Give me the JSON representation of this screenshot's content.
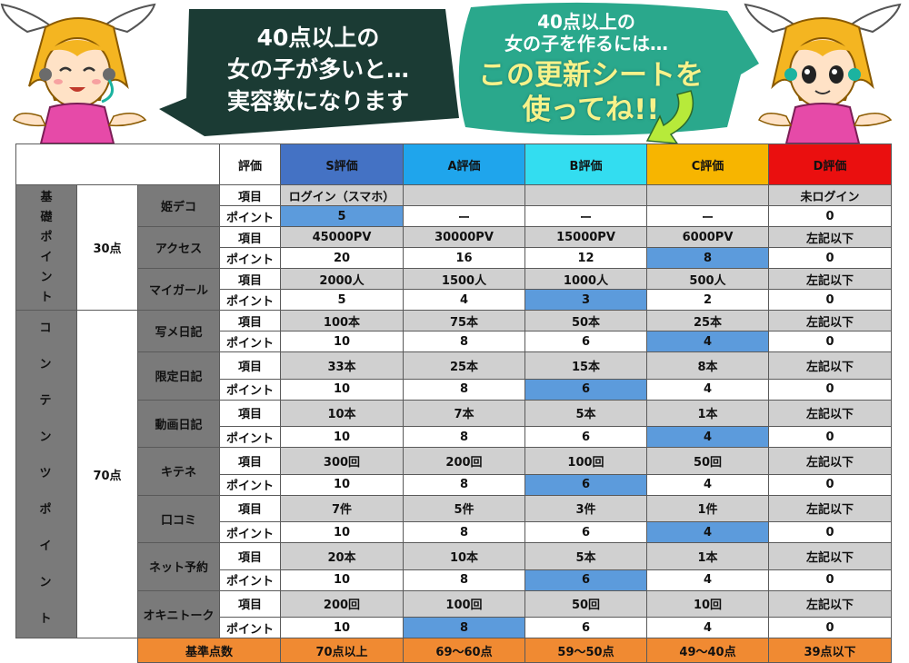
{
  "banner": {
    "left_bubble": [
      "40点以上の",
      "女の子が多いと…",
      "実容数になります"
    ],
    "right_bubble_small": [
      "40点以上の",
      "女の子を作るには…"
    ],
    "right_bubble_big": [
      "この更新シートを",
      "使ってね!!"
    ],
    "colors": {
      "left_bubble": "#1b3b34",
      "right_bubble": "#2aa88c",
      "right_text": "#f7f28a"
    }
  },
  "table": {
    "header": {
      "label": "評価",
      "grades": [
        "S評価",
        "A評価",
        "B評価",
        "C評価",
        "D評価"
      ]
    },
    "row_labels": {
      "item": "項目",
      "point": "ポイント"
    },
    "sections": [
      {
        "title": "基礎ポイント",
        "points": "30点",
        "categories": [
          {
            "name": "姫デコ",
            "items": [
              "ログイン（スマホ）",
              "",
              "",
              "",
              "未ログイン"
            ],
            "points": [
              "5",
              "ー",
              "ー",
              "ー",
              "0"
            ],
            "highlight": 0
          },
          {
            "name": "アクセス",
            "items": [
              "45000PV",
              "30000PV",
              "15000PV",
              "6000PV",
              "左記以下"
            ],
            "points": [
              "20",
              "16",
              "12",
              "8",
              "0"
            ],
            "highlight": 3
          },
          {
            "name": "マイガール",
            "items": [
              "2000人",
              "1500人",
              "1000人",
              "500人",
              "左記以下"
            ],
            "points": [
              "5",
              "4",
              "3",
              "2",
              "0"
            ],
            "highlight": 2
          }
        ]
      },
      {
        "title": "コンテンツポイント",
        "points": "70点",
        "categories": [
          {
            "name": "写メ日記",
            "items": [
              "100本",
              "75本",
              "50本",
              "25本",
              "左記以下"
            ],
            "points": [
              "10",
              "8",
              "6",
              "4",
              "0"
            ],
            "highlight": 3
          },
          {
            "name": "限定日記",
            "items": [
              "33本",
              "25本",
              "15本",
              "8本",
              "左記以下"
            ],
            "points": [
              "10",
              "8",
              "6",
              "4",
              "0"
            ],
            "highlight": 2
          },
          {
            "name": "動画日記",
            "items": [
              "10本",
              "7本",
              "5本",
              "1本",
              "左記以下"
            ],
            "points": [
              "10",
              "8",
              "6",
              "4",
              "0"
            ],
            "highlight": 3
          },
          {
            "name": "キテネ",
            "items": [
              "300回",
              "200回",
              "100回",
              "50回",
              "左記以下"
            ],
            "points": [
              "10",
              "8",
              "6",
              "4",
              "0"
            ],
            "highlight": 2
          },
          {
            "name": "口コミ",
            "items": [
              "7件",
              "5件",
              "3件",
              "1件",
              "左記以下"
            ],
            "points": [
              "10",
              "8",
              "6",
              "4",
              "0"
            ],
            "highlight": 3
          },
          {
            "name": "ネット予約",
            "items": [
              "20本",
              "10本",
              "5本",
              "1本",
              "左記以下"
            ],
            "points": [
              "10",
              "8",
              "6",
              "4",
              "0"
            ],
            "highlight": 2
          },
          {
            "name": "オキニトーク",
            "items": [
              "200回",
              "100回",
              "50回",
              "10回",
              "左記以下"
            ],
            "points": [
              "10",
              "8",
              "6",
              "4",
              "0"
            ],
            "highlight": 1
          }
        ]
      }
    ],
    "footer": {
      "label": "基準点数",
      "values": [
        "70点以上",
        "69〜60点",
        "59〜50点",
        "49〜40点",
        "39点以下"
      ]
    }
  }
}
